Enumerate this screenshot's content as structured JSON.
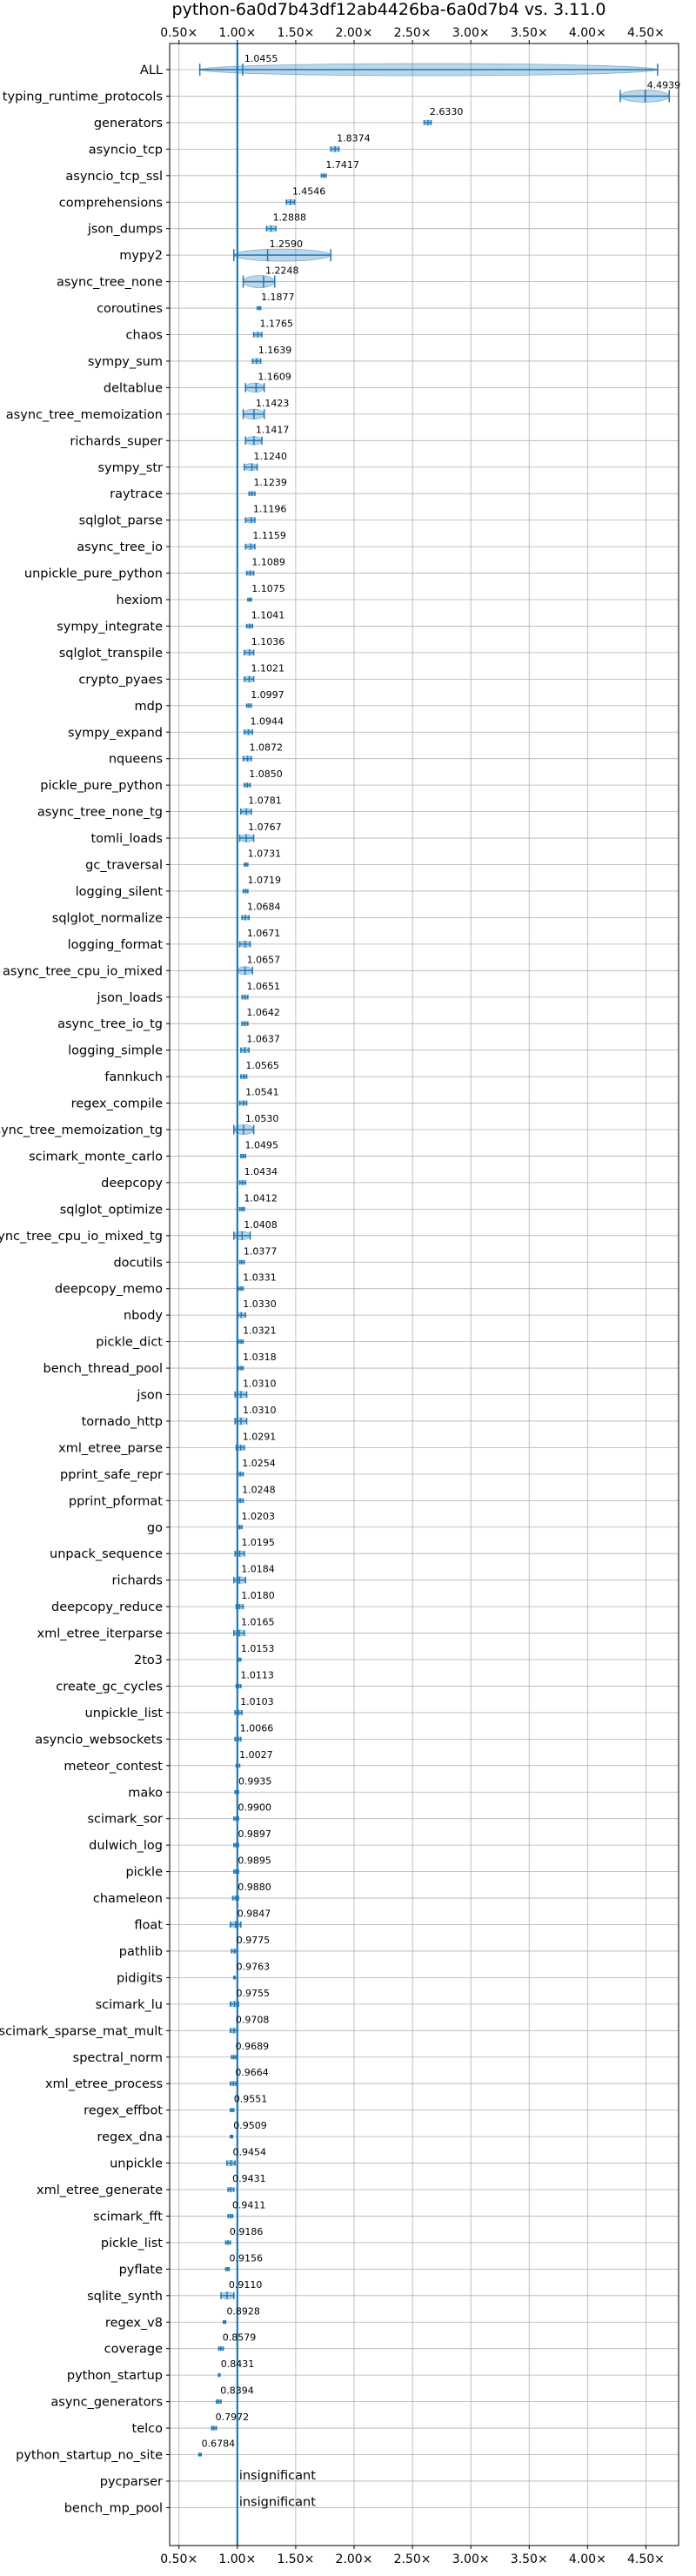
{
  "chart_data": {
    "type": "violin",
    "title": "python-6a0d7b43df12ab4426ba-6a0d7b4 vs. 3.11.0",
    "xlim": [
      0.42,
      4.78
    ],
    "xticks": [
      0.5,
      1.0,
      1.5,
      2.0,
      2.5,
      3.0,
      3.5,
      4.0,
      4.5
    ],
    "xtick_labels": [
      "0.50×",
      "1.00×",
      "1.50×",
      "2.00×",
      "2.50×",
      "3.00×",
      "3.50×",
      "4.00×",
      "4.50×"
    ],
    "reference_line": 1.0,
    "grid": true,
    "color": "#1f77b4",
    "benchmarks": [
      {
        "name": "ALL",
        "value": 1.0455,
        "label": "1.0455",
        "min": 0.6784,
        "max": 4.6
      },
      {
        "name": "typing_runtime_protocols",
        "value": 4.4939,
        "label": "4.4939",
        "min": 4.28,
        "max": 4.7
      },
      {
        "name": "generators",
        "value": 2.633,
        "label": "2.6330",
        "min": 2.6,
        "max": 2.66
      },
      {
        "name": "asyncio_tcp",
        "value": 1.8374,
        "label": "1.8374",
        "min": 1.8,
        "max": 1.87
      },
      {
        "name": "asyncio_tcp_ssl",
        "value": 1.7417,
        "label": "1.7417",
        "min": 1.72,
        "max": 1.76
      },
      {
        "name": "comprehensions",
        "value": 1.4546,
        "label": "1.4546",
        "min": 1.42,
        "max": 1.49
      },
      {
        "name": "json_dumps",
        "value": 1.2888,
        "label": "1.2888",
        "min": 1.25,
        "max": 1.33
      },
      {
        "name": "mypy2",
        "value": 1.259,
        "label": "1.2590",
        "min": 0.97,
        "max": 1.8
      },
      {
        "name": "async_tree_none",
        "value": 1.2248,
        "label": "1.2248",
        "min": 1.05,
        "max": 1.32
      },
      {
        "name": "coroutines",
        "value": 1.1877,
        "label": "1.1877",
        "min": 1.17,
        "max": 1.2
      },
      {
        "name": "chaos",
        "value": 1.1765,
        "label": "1.1765",
        "min": 1.14,
        "max": 1.21
      },
      {
        "name": "sympy_sum",
        "value": 1.1639,
        "label": "1.1639",
        "min": 1.13,
        "max": 1.2
      },
      {
        "name": "deltablue",
        "value": 1.1609,
        "label": "1.1609",
        "min": 1.07,
        "max": 1.23
      },
      {
        "name": "async_tree_memoization",
        "value": 1.1423,
        "label": "1.1423",
        "min": 1.05,
        "max": 1.23
      },
      {
        "name": "richards_super",
        "value": 1.1417,
        "label": "1.1417",
        "min": 1.07,
        "max": 1.21
      },
      {
        "name": "sympy_str",
        "value": 1.124,
        "label": "1.1240",
        "min": 1.06,
        "max": 1.17
      },
      {
        "name": "raytrace",
        "value": 1.1239,
        "label": "1.1239",
        "min": 1.1,
        "max": 1.15
      },
      {
        "name": "sqlglot_parse",
        "value": 1.1196,
        "label": "1.1196",
        "min": 1.07,
        "max": 1.15
      },
      {
        "name": "async_tree_io",
        "value": 1.1159,
        "label": "1.1159",
        "min": 1.07,
        "max": 1.15
      },
      {
        "name": "unpickle_pure_python",
        "value": 1.1089,
        "label": "1.1089",
        "min": 1.08,
        "max": 1.14
      },
      {
        "name": "hexiom",
        "value": 1.1075,
        "label": "1.1075",
        "min": 1.09,
        "max": 1.12
      },
      {
        "name": "sympy_integrate",
        "value": 1.1041,
        "label": "1.1041",
        "min": 1.08,
        "max": 1.13
      },
      {
        "name": "sqlglot_transpile",
        "value": 1.1036,
        "label": "1.1036",
        "min": 1.06,
        "max": 1.14
      },
      {
        "name": "crypto_pyaes",
        "value": 1.1021,
        "label": "1.1021",
        "min": 1.06,
        "max": 1.14
      },
      {
        "name": "mdp",
        "value": 1.0997,
        "label": "1.0997",
        "min": 1.08,
        "max": 1.12
      },
      {
        "name": "sympy_expand",
        "value": 1.0944,
        "label": "1.0944",
        "min": 1.06,
        "max": 1.13
      },
      {
        "name": "nqueens",
        "value": 1.0872,
        "label": "1.0872",
        "min": 1.05,
        "max": 1.12
      },
      {
        "name": "pickle_pure_python",
        "value": 1.085,
        "label": "1.0850",
        "min": 1.06,
        "max": 1.11
      },
      {
        "name": "async_tree_none_tg",
        "value": 1.0781,
        "label": "1.0781",
        "min": 1.03,
        "max": 1.12
      },
      {
        "name": "tomli_loads",
        "value": 1.0767,
        "label": "1.0767",
        "min": 1.02,
        "max": 1.14
      },
      {
        "name": "gc_traversal",
        "value": 1.0731,
        "label": "1.0731",
        "min": 1.06,
        "max": 1.09
      },
      {
        "name": "logging_silent",
        "value": 1.0719,
        "label": "1.0719",
        "min": 1.05,
        "max": 1.09
      },
      {
        "name": "sqlglot_normalize",
        "value": 1.0684,
        "label": "1.0684",
        "min": 1.04,
        "max": 1.1
      },
      {
        "name": "logging_format",
        "value": 1.0671,
        "label": "1.0671",
        "min": 1.02,
        "max": 1.11
      },
      {
        "name": "async_tree_cpu_io_mixed",
        "value": 1.0657,
        "label": "1.0657",
        "min": 1.0,
        "max": 1.13
      },
      {
        "name": "json_loads",
        "value": 1.0651,
        "label": "1.0651",
        "min": 1.04,
        "max": 1.09
      },
      {
        "name": "async_tree_io_tg",
        "value": 1.0642,
        "label": "1.0642",
        "min": 1.04,
        "max": 1.09
      },
      {
        "name": "logging_simple",
        "value": 1.0637,
        "label": "1.0637",
        "min": 1.03,
        "max": 1.1
      },
      {
        "name": "fannkuch",
        "value": 1.0565,
        "label": "1.0565",
        "min": 1.03,
        "max": 1.08
      },
      {
        "name": "regex_compile",
        "value": 1.0541,
        "label": "1.0541",
        "min": 1.02,
        "max": 1.08
      },
      {
        "name": "async_tree_memoization_tg",
        "value": 1.053,
        "label": "1.0530",
        "min": 0.97,
        "max": 1.14
      },
      {
        "name": "scimark_monte_carlo",
        "value": 1.0495,
        "label": "1.0495",
        "min": 1.03,
        "max": 1.07
      },
      {
        "name": "deepcopy",
        "value": 1.0434,
        "label": "1.0434",
        "min": 1.02,
        "max": 1.07
      },
      {
        "name": "sqlglot_optimize",
        "value": 1.0412,
        "label": "1.0412",
        "min": 1.02,
        "max": 1.06
      },
      {
        "name": "async_tree_cpu_io_mixed_tg",
        "value": 1.0408,
        "label": "1.0408",
        "min": 0.97,
        "max": 1.11
      },
      {
        "name": "docutils",
        "value": 1.0377,
        "label": "1.0377",
        "min": 1.02,
        "max": 1.06
      },
      {
        "name": "deepcopy_memo",
        "value": 1.0331,
        "label": "1.0331",
        "min": 1.01,
        "max": 1.05
      },
      {
        "name": "nbody",
        "value": 1.033,
        "label": "1.0330",
        "min": 1.0,
        "max": 1.07
      },
      {
        "name": "pickle_dict",
        "value": 1.0321,
        "label": "1.0321",
        "min": 1.01,
        "max": 1.05
      },
      {
        "name": "bench_thread_pool",
        "value": 1.0318,
        "label": "1.0318",
        "min": 1.01,
        "max": 1.05
      },
      {
        "name": "json",
        "value": 1.031,
        "label": "1.0310",
        "min": 0.98,
        "max": 1.08
      },
      {
        "name": "tornado_http",
        "value": 1.031,
        "label": "1.0310",
        "min": 0.98,
        "max": 1.08
      },
      {
        "name": "xml_etree_parse",
        "value": 1.0291,
        "label": "1.0291",
        "min": 0.99,
        "max": 1.06
      },
      {
        "name": "pprint_safe_repr",
        "value": 1.0254,
        "label": "1.0254",
        "min": 1.0,
        "max": 1.05
      },
      {
        "name": "pprint_pformat",
        "value": 1.0248,
        "label": "1.0248",
        "min": 1.0,
        "max": 1.05
      },
      {
        "name": "go",
        "value": 1.0203,
        "label": "1.0203",
        "min": 1.0,
        "max": 1.04
      },
      {
        "name": "unpack_sequence",
        "value": 1.0195,
        "label": "1.0195",
        "min": 0.98,
        "max": 1.06
      },
      {
        "name": "richards",
        "value": 1.0184,
        "label": "1.0184",
        "min": 0.97,
        "max": 1.07
      },
      {
        "name": "deepcopy_reduce",
        "value": 1.018,
        "label": "1.0180",
        "min": 0.99,
        "max": 1.05
      },
      {
        "name": "xml_etree_iterparse",
        "value": 1.0165,
        "label": "1.0165",
        "min": 0.97,
        "max": 1.06
      },
      {
        "name": "2to3",
        "value": 1.0153,
        "label": "1.0153",
        "min": 1.0,
        "max": 1.03
      },
      {
        "name": "create_gc_cycles",
        "value": 1.0113,
        "label": "1.0113",
        "min": 0.99,
        "max": 1.03
      },
      {
        "name": "unpickle_list",
        "value": 1.0103,
        "label": "1.0103",
        "min": 0.98,
        "max": 1.04
      },
      {
        "name": "asyncio_websockets",
        "value": 1.0066,
        "label": "1.0066",
        "min": 0.98,
        "max": 1.03
      },
      {
        "name": "meteor_contest",
        "value": 1.0027,
        "label": "1.0027",
        "min": 0.99,
        "max": 1.02
      },
      {
        "name": "mako",
        "value": 0.9935,
        "label": "0.9935",
        "min": 0.98,
        "max": 1.01
      },
      {
        "name": "scimark_sor",
        "value": 0.99,
        "label": "0.9900",
        "min": 0.97,
        "max": 1.01
      },
      {
        "name": "dulwich_log",
        "value": 0.9897,
        "label": "0.9897",
        "min": 0.97,
        "max": 1.01
      },
      {
        "name": "pickle",
        "value": 0.9895,
        "label": "0.9895",
        "min": 0.97,
        "max": 1.01
      },
      {
        "name": "chameleon",
        "value": 0.988,
        "label": "0.9880",
        "min": 0.96,
        "max": 1.01
      },
      {
        "name": "float",
        "value": 0.9847,
        "label": "0.9847",
        "min": 0.94,
        "max": 1.03
      },
      {
        "name": "pathlib",
        "value": 0.9775,
        "label": "0.9775",
        "min": 0.95,
        "max": 1.0
      },
      {
        "name": "pidigits",
        "value": 0.9763,
        "label": "0.9763",
        "min": 0.97,
        "max": 0.98
      },
      {
        "name": "scimark_lu",
        "value": 0.9755,
        "label": "0.9755",
        "min": 0.94,
        "max": 1.01
      },
      {
        "name": "scimark_sparse_mat_mult",
        "value": 0.9708,
        "label": "0.9708",
        "min": 0.94,
        "max": 1.0
      },
      {
        "name": "spectral_norm",
        "value": 0.9689,
        "label": "0.9689",
        "min": 0.95,
        "max": 0.99
      },
      {
        "name": "xml_etree_process",
        "value": 0.9664,
        "label": "0.9664",
        "min": 0.94,
        "max": 0.99
      },
      {
        "name": "regex_effbot",
        "value": 0.9551,
        "label": "0.9551",
        "min": 0.94,
        "max": 0.97
      },
      {
        "name": "regex_dna",
        "value": 0.9509,
        "label": "0.9509",
        "min": 0.94,
        "max": 0.96
      },
      {
        "name": "unpickle",
        "value": 0.9454,
        "label": "0.9454",
        "min": 0.91,
        "max": 0.98
      },
      {
        "name": "xml_etree_generate",
        "value": 0.9431,
        "label": "0.9431",
        "min": 0.92,
        "max": 0.97
      },
      {
        "name": "scimark_fft",
        "value": 0.9411,
        "label": "0.9411",
        "min": 0.92,
        "max": 0.96
      },
      {
        "name": "pickle_list",
        "value": 0.9186,
        "label": "0.9186",
        "min": 0.9,
        "max": 0.94
      },
      {
        "name": "pyflate",
        "value": 0.9156,
        "label": "0.9156",
        "min": 0.9,
        "max": 0.93
      },
      {
        "name": "sqlite_synth",
        "value": 0.911,
        "label": "0.9110",
        "min": 0.86,
        "max": 0.97
      },
      {
        "name": "regex_v8",
        "value": 0.8928,
        "label": "0.8928",
        "min": 0.88,
        "max": 0.9
      },
      {
        "name": "coverage",
        "value": 0.8579,
        "label": "0.8579",
        "min": 0.84,
        "max": 0.88
      },
      {
        "name": "python_startup",
        "value": 0.8431,
        "label": "0.8431",
        "min": 0.84,
        "max": 0.85
      },
      {
        "name": "async_generators",
        "value": 0.8394,
        "label": "0.8394",
        "min": 0.82,
        "max": 0.86
      },
      {
        "name": "telco",
        "value": 0.7972,
        "label": "0.7972",
        "min": 0.78,
        "max": 0.82
      },
      {
        "name": "python_startup_no_site",
        "value": 0.6784,
        "label": "0.6784",
        "min": 0.67,
        "max": 0.69
      },
      {
        "name": "pycparser",
        "value": null,
        "label": "insignificant"
      },
      {
        "name": "bench_mp_pool",
        "value": null,
        "label": "insignificant"
      }
    ]
  }
}
